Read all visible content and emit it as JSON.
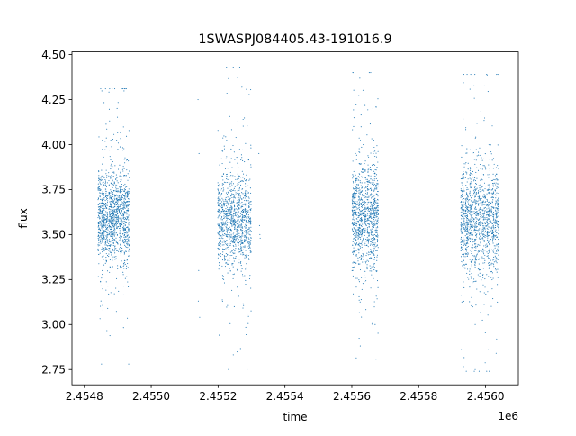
{
  "chart_data": {
    "type": "scatter",
    "title": "1SWASPJ084405.43-191016.9",
    "xlabel": "time",
    "ylabel": "flux",
    "x_offset_label": "1e6",
    "xlim": [
      2454763,
      2456098
    ],
    "ylim": [
      2.665,
      4.515
    ],
    "x_ticks": [
      {
        "value": 2454800,
        "label": "2.4548"
      },
      {
        "value": 2455000,
        "label": "2.4550"
      },
      {
        "value": 2455200,
        "label": "2.4552"
      },
      {
        "value": 2455400,
        "label": "2.4554"
      },
      {
        "value": 2455600,
        "label": "2.4556"
      },
      {
        "value": 2455800,
        "label": "2.4558"
      },
      {
        "value": 2456000,
        "label": "2.4560"
      }
    ],
    "y_ticks": [
      {
        "value": 2.75,
        "label": "2.75"
      },
      {
        "value": 3.0,
        "label": "3.00"
      },
      {
        "value": 3.25,
        "label": "3.25"
      },
      {
        "value": 3.5,
        "label": "3.50"
      },
      {
        "value": 3.75,
        "label": "3.75"
      },
      {
        "value": 4.0,
        "label": "4.00"
      },
      {
        "value": 4.25,
        "label": "4.25"
      },
      {
        "value": 4.5,
        "label": "4.50"
      }
    ],
    "grid": false,
    "series": [
      {
        "color": "#1f77b4",
        "clusters": [
          {
            "x_start": 2454840,
            "x_end": 2454935,
            "y_center": 3.6,
            "y_spread": 0.13,
            "y_min": 2.78,
            "y_max": 4.31,
            "n": 1300
          },
          {
            "x_start": 2455198,
            "x_end": 2455300,
            "y_center": 3.58,
            "y_spread": 0.13,
            "y_min": 2.75,
            "y_max": 4.43,
            "n": 1100
          },
          {
            "x_start": 2455600,
            "x_end": 2455680,
            "y_center": 3.6,
            "y_spread": 0.14,
            "y_min": 2.76,
            "y_max": 4.4,
            "n": 1000
          },
          {
            "x_start": 2455925,
            "x_end": 2456040,
            "y_center": 3.58,
            "y_spread": 0.15,
            "y_min": 2.74,
            "y_max": 4.39,
            "n": 1300
          }
        ],
        "isolated_points": [
          {
            "x": 2455143,
            "y": 3.95
          },
          {
            "x": 2455145,
            "y": 3.04
          },
          {
            "x": 2455141,
            "y": 3.13
          },
          {
            "x": 2455140,
            "y": 4.25
          },
          {
            "x": 2455142,
            "y": 3.3
          },
          {
            "x": 2455325,
            "y": 3.5
          },
          {
            "x": 2455326,
            "y": 3.48
          },
          {
            "x": 2455322,
            "y": 3.95
          },
          {
            "x": 2455324,
            "y": 3.55
          }
        ]
      }
    ]
  }
}
